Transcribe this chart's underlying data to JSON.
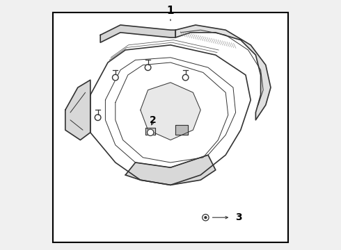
{
  "background_color": "#f0f0f0",
  "border_color": "#000000",
  "line_color": "#333333",
  "label_color": "#000000",
  "figsize": [
    4.9,
    3.6
  ],
  "dpi": 100
}
